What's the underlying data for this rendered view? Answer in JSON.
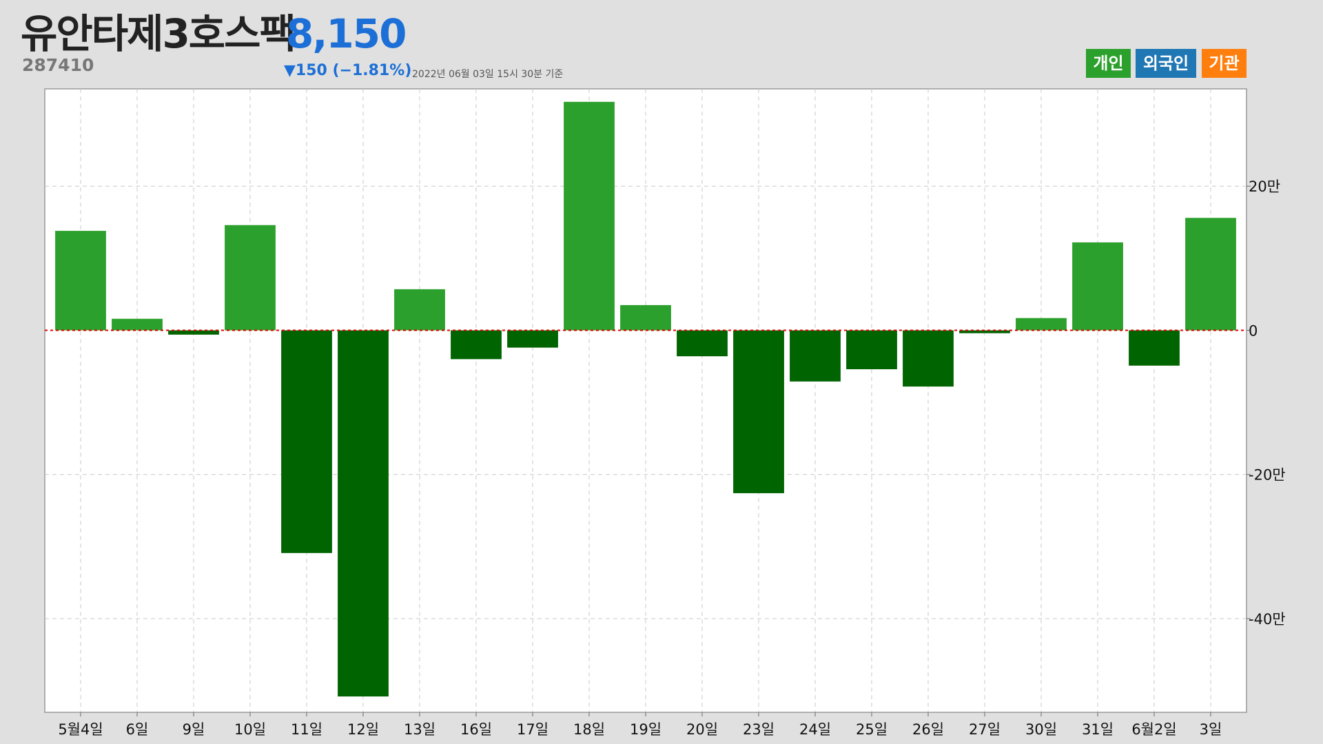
{
  "header": {
    "stock_name": "유안타제3호스팩",
    "price": "8,150",
    "code": "287410",
    "change": "▼150 (−1.81%)",
    "timestamp": "2022년 06월 03일 15시 30분 기준"
  },
  "legend": [
    {
      "label": "개인",
      "color": "#2ca02c"
    },
    {
      "label": "외국인",
      "color": "#1f77b4"
    },
    {
      "label": "기관",
      "color": "#ff7f0e"
    }
  ],
  "colors": {
    "positive_bar": "#2ca02c",
    "negative_bar": "#006400",
    "zero_line": "#e00000",
    "grid": "#c8c8c8"
  },
  "chart_data": {
    "type": "bar",
    "title": "",
    "xlabel": "",
    "ylabel": "",
    "categories": [
      "5월4일",
      "6일",
      "9일",
      "10일",
      "11일",
      "12일",
      "13일",
      "16일",
      "17일",
      "18일",
      "19일",
      "20일",
      "23일",
      "24일",
      "25일",
      "26일",
      "27일",
      "30일",
      "31일",
      "6월2일",
      "3일"
    ],
    "series": [
      {
        "values": [
          138000,
          16000,
          -6000,
          146000,
          -309000,
          -508000,
          57000,
          -40000,
          -24000,
          317000,
          35000,
          -36000,
          -226000,
          -71000,
          -54000,
          -78000,
          -4000,
          17000,
          122000,
          -49000,
          156000
        ]
      }
    ],
    "ylim": [
      -530000,
      335000
    ],
    "yticks": [
      {
        "value": 200000,
        "label": "20만"
      },
      {
        "value": 0,
        "label": "0"
      },
      {
        "value": -200000,
        "label": "-20만"
      },
      {
        "value": -400000,
        "label": "-40만"
      }
    ],
    "grid": true,
    "y_axis_side": "right"
  }
}
